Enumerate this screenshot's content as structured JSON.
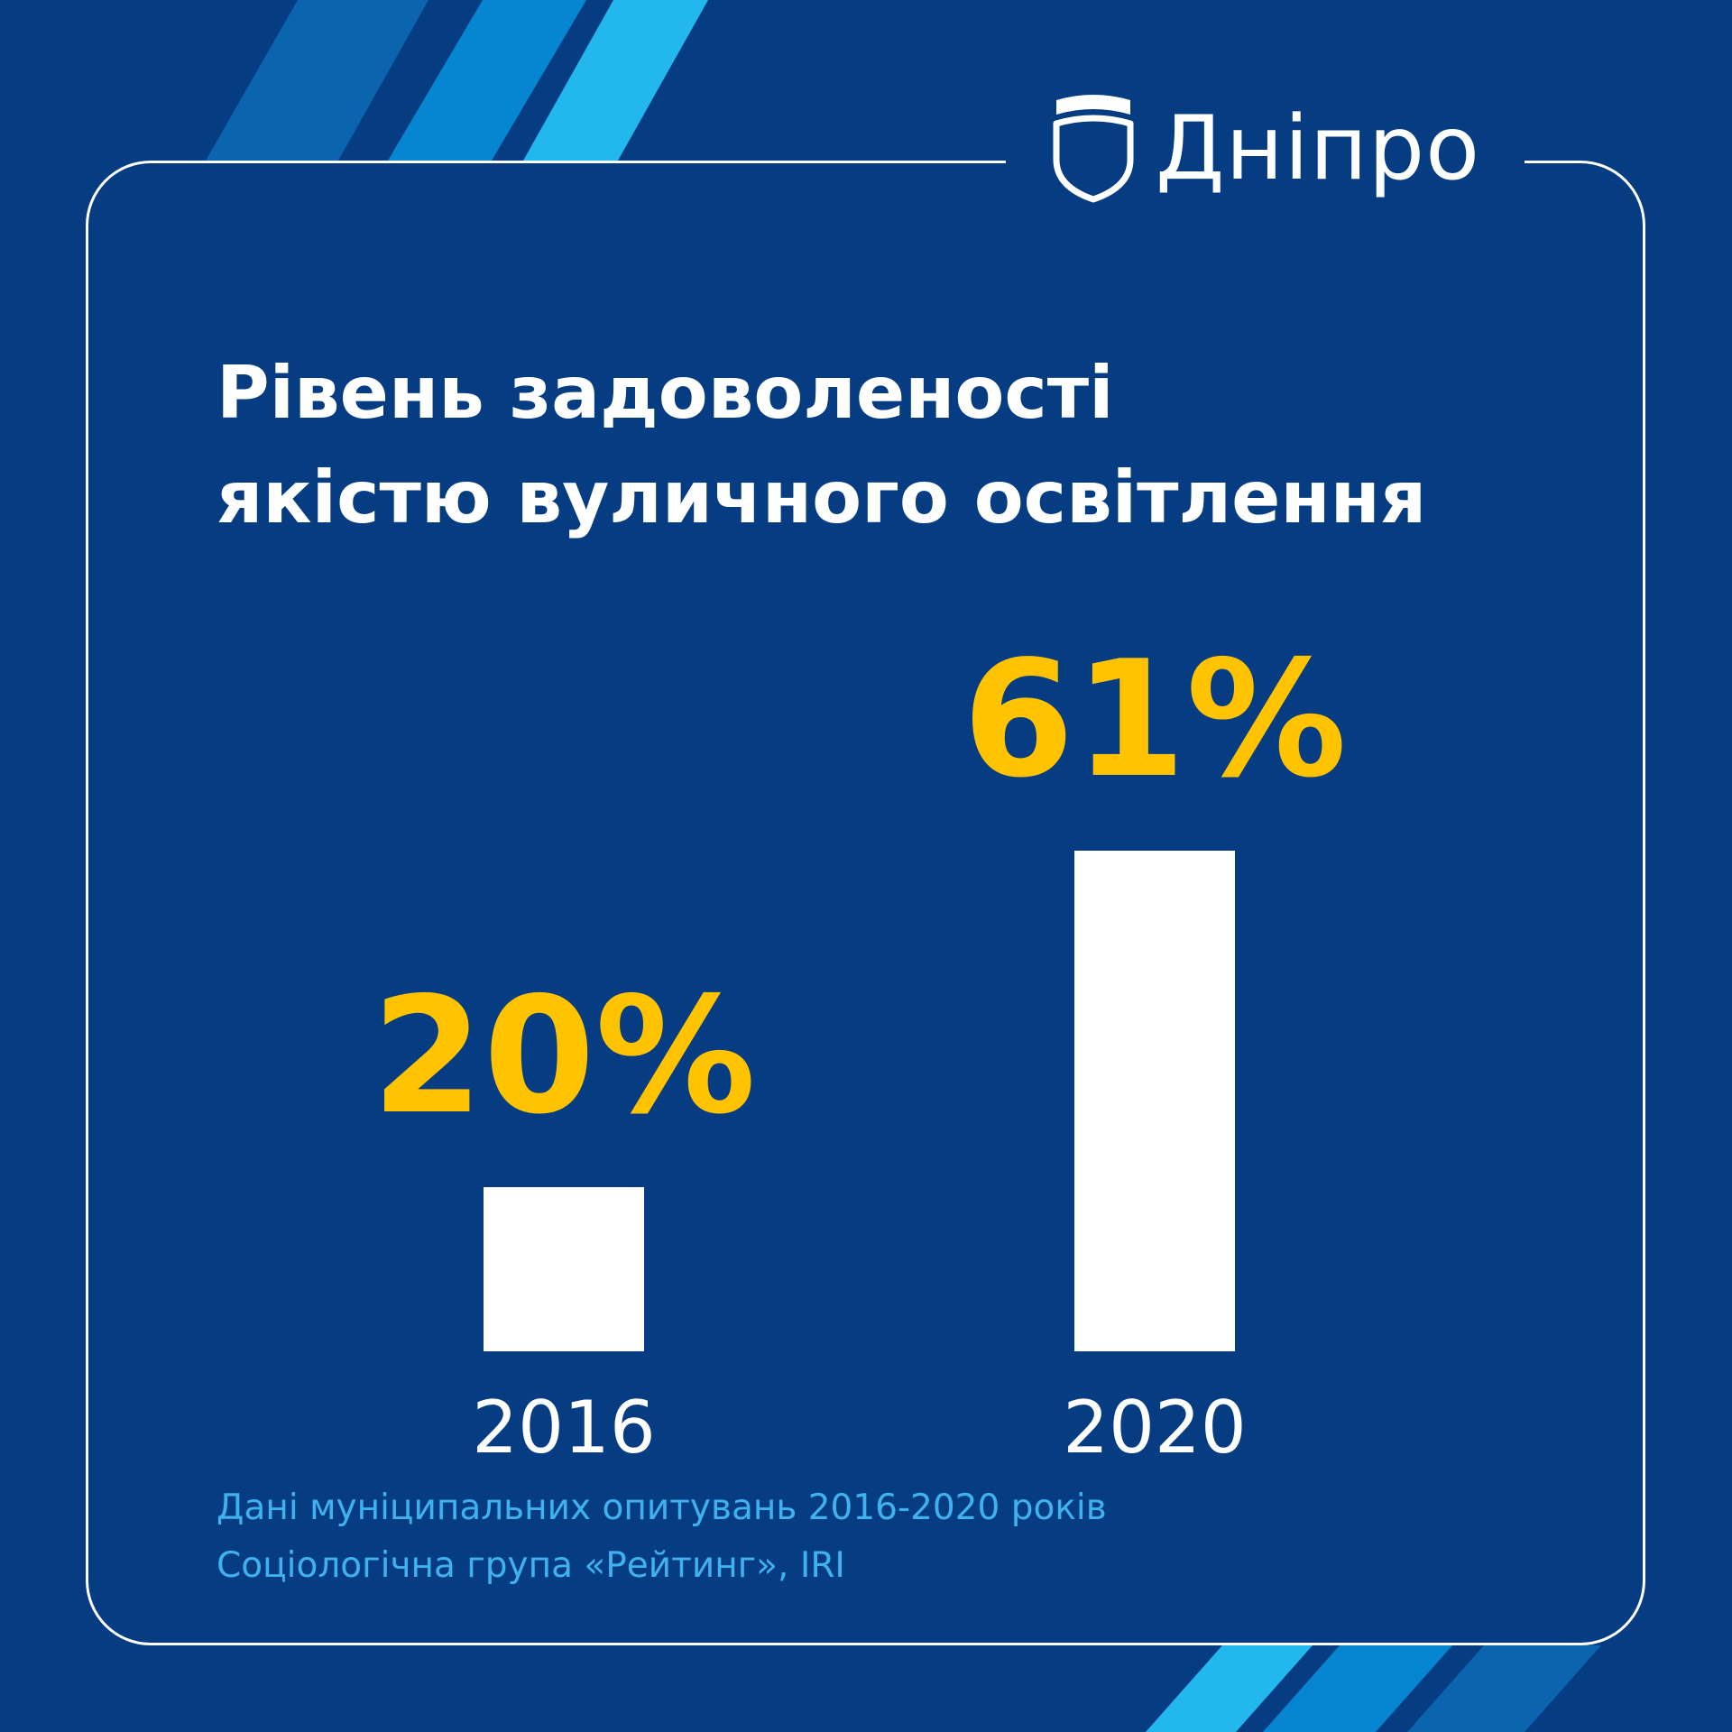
{
  "brand": {
    "name": "Дніпро",
    "icon": "shield-logo-icon"
  },
  "title": {
    "line1": "Рівень задоволеності",
    "line2": "якістю вуличного освітлення"
  },
  "colors": {
    "background": "#063d82",
    "bar": "#ffffff",
    "value_label": "#ffc300",
    "year_label": "#ffffff",
    "footnote": "#3fb2ee",
    "stripe_dark": "#0a64ae",
    "stripe_mid": "#0686d0",
    "stripe_light": "#22b8ee"
  },
  "chart_data": {
    "type": "bar",
    "title": "Рівень задоволеності якістю вуличного освітлення",
    "categories": [
      "2016",
      "2020"
    ],
    "values": [
      20,
      61
    ],
    "value_labels": [
      "20%",
      "61%"
    ],
    "unit": "%",
    "ylim": [
      0,
      61
    ],
    "grid": false,
    "legend": "none"
  },
  "footnote": {
    "line1": "Дані муніципальних опитувань 2016-2020 років",
    "line2": "Соціологічна група «Рейтинг», IRI"
  }
}
